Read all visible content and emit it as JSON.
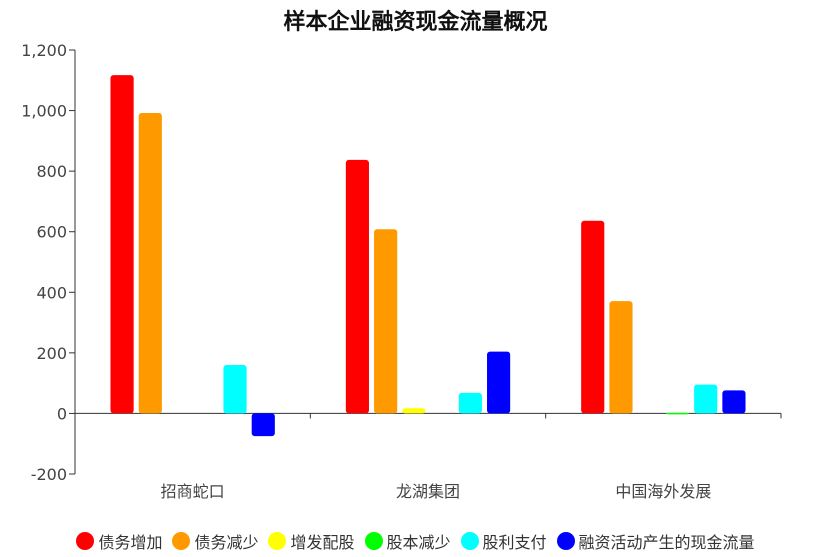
{
  "chart_data": {
    "type": "bar",
    "title": "样本企业融资现金流量概况",
    "categories": [
      "招商蛇口",
      "龙湖集团",
      "中国海外发展"
    ],
    "ylim": [
      -200,
      1200
    ],
    "yticks": [
      -200,
      0,
      200,
      400,
      600,
      800,
      1000,
      1200
    ],
    "ytick_labels": [
      "-200",
      "0",
      "200",
      "400",
      "600",
      "800",
      "1,000",
      "1,200"
    ],
    "grid": false,
    "legend_position": "bottom",
    "series": [
      {
        "name": "债务增加",
        "color": "#ff0000",
        "values": [
          1117,
          837,
          636
        ]
      },
      {
        "name": "债务减少",
        "color": "#ff9900",
        "values": [
          992,
          608,
          371
        ]
      },
      {
        "name": "增发配股",
        "color": "#ffff00",
        "values": [
          0,
          17,
          0
        ]
      },
      {
        "name": "股本减少",
        "color": "#00ff00",
        "values": [
          0,
          0,
          2
        ]
      },
      {
        "name": "股利支付",
        "color": "#00ffff",
        "values": [
          160,
          68,
          95
        ]
      },
      {
        "name": "融资活动产生的现金流量",
        "color": "#0000ff",
        "values": [
          -75,
          204,
          76
        ]
      }
    ]
  }
}
